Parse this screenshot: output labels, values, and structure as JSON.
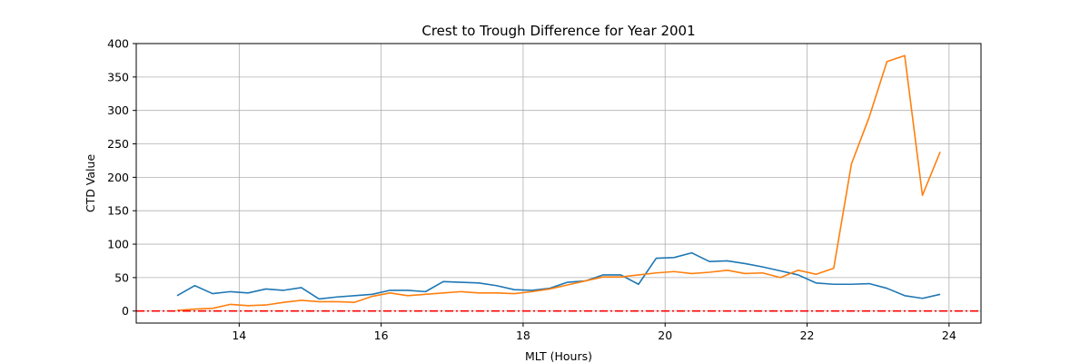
{
  "chart_data": {
    "type": "line",
    "title": "Crest to Trough Difference for Year 2001",
    "xlabel": "MLT (Hours)",
    "ylabel": "CTD Value",
    "xlim": [
      12.55,
      24.45
    ],
    "ylim": [
      -18,
      400
    ],
    "xticks": [
      14,
      16,
      18,
      20,
      22,
      24
    ],
    "yticks": [
      0,
      50,
      100,
      150,
      200,
      250,
      300,
      350,
      400
    ],
    "grid": true,
    "legend": "none",
    "x": [
      13.125,
      13.375,
      13.625,
      13.875,
      14.125,
      14.375,
      14.625,
      14.875,
      15.125,
      15.375,
      15.625,
      15.875,
      16.125,
      16.375,
      16.625,
      16.875,
      17.125,
      17.375,
      17.625,
      17.875,
      18.125,
      18.375,
      18.625,
      18.875,
      19.125,
      19.375,
      19.625,
      19.875,
      20.125,
      20.375,
      20.625,
      20.875,
      21.125,
      21.375,
      21.625,
      21.875,
      22.125,
      22.375,
      22.625,
      22.875,
      23.125,
      23.375,
      23.625,
      23.875
    ],
    "series": [
      {
        "color": "#1f77b4",
        "values": [
          23,
          38,
          26,
          29,
          27,
          33,
          31,
          35,
          18,
          21,
          23,
          25,
          31,
          31,
          29,
          44,
          43,
          42,
          38,
          32,
          31,
          34,
          43,
          45,
          54,
          54,
          40,
          79,
          80,
          87,
          74,
          75,
          71,
          66,
          60,
          54,
          42,
          40,
          40,
          41,
          34,
          23,
          19,
          25
        ]
      },
      {
        "color": "#ff7f0e",
        "values": [
          1,
          3,
          4,
          10,
          8,
          9,
          13,
          16,
          14,
          14,
          13,
          22,
          27,
          23,
          25,
          27,
          29,
          27,
          27,
          26,
          29,
          33,
          39,
          45,
          51,
          51,
          54,
          57,
          59,
          56,
          58,
          61,
          56,
          57,
          50,
          61,
          55,
          64,
          220,
          290,
          373,
          382,
          173,
          238
        ]
      }
    ],
    "reference_line": {
      "y": 0,
      "color": "#ff0000",
      "style": "dash-dot"
    }
  }
}
